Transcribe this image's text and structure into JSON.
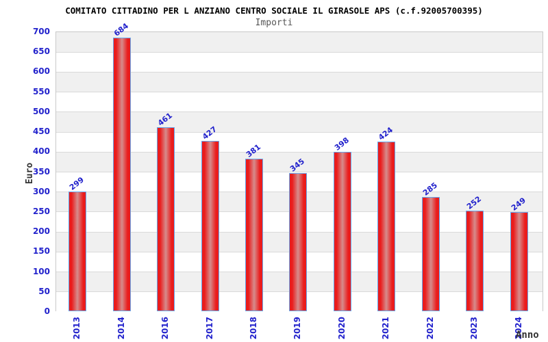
{
  "chart_data": {
    "type": "bar",
    "title": "COMITATO CITTADINO PER L ANZIANO CENTRO SOCIALE IL GIRASOLE APS (c.f.92005700395)",
    "subtitle": "Importi",
    "xlabel": "Anno",
    "ylabel": "Euro",
    "categories": [
      "2013",
      "2014",
      "2016",
      "2017",
      "2018",
      "2019",
      "2020",
      "2021",
      "2022",
      "2023",
      "2024"
    ],
    "values": [
      299,
      684,
      461,
      427,
      381,
      345,
      398,
      424,
      285,
      252,
      249
    ],
    "ylim": [
      0,
      700
    ],
    "ytick_step": 50,
    "legend": "none",
    "grid": true,
    "colors": {
      "bar_fill": "#ea1c1c",
      "bar_highlight": "#d68c8c",
      "bar_border": "#64a7ee",
      "tick_label": "#2222cc",
      "value_label": "#2222cc",
      "title_text": "#000000",
      "subtitle_text": "#555555",
      "axis_label_text": "#333333",
      "band_gray": "#f0f0f0",
      "band_white": "#ffffff",
      "gridline": "#d9d9d9",
      "plot_border": "#c9c9c9"
    }
  }
}
